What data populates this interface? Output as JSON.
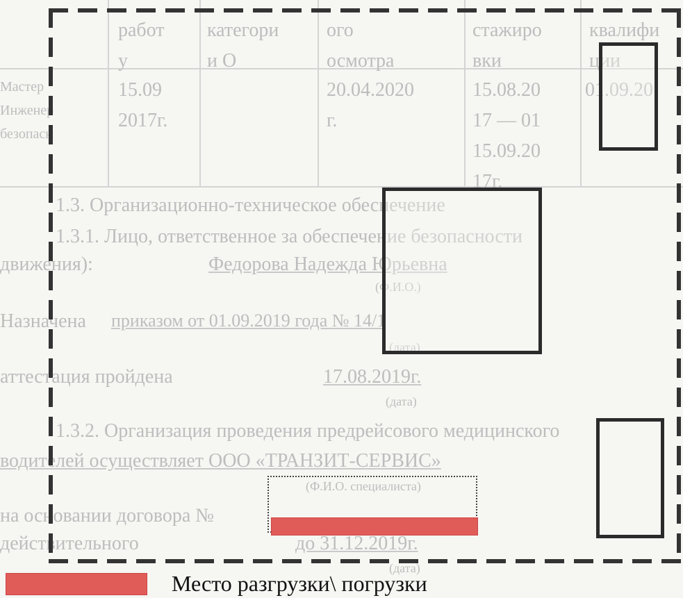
{
  "table": {
    "headers": [
      "работ\nу",
      "категори\nи О",
      "ого\nосмотра",
      "стажиро\nвки",
      "квалифи\nции"
    ],
    "row": {
      "left": [
        "Мастер",
        "Инженер",
        "безопасн"
      ],
      "col1": "15.09\n2017г.",
      "col3": "20.04.2020\nг.",
      "col4": "15.08.20\n17 — 01\n15.09.20\n17г.",
      "col5": "01.09.20"
    }
  },
  "document": {
    "section_title": "1.3. Организационно-техническое обеспечение",
    "line_1": "1.3.1. Лицо, ответственное за обеспечение безопасности",
    "line_2_prefix": "движения):",
    "line_2_name": "Федорова Надежда Юрьевна",
    "line_2_caption": "(Ф.И.О.)",
    "line_3_prefix": "Назначена",
    "line_3_value": "приказом от 01.09.2019 года № 14/1",
    "line_3_caption": "(дата)",
    "line_4_prefix": "аттестация пройдена",
    "line_4_value": "17.08.2019г.",
    "line_4_caption": "(дата)",
    "line_5": "1.3.2. Организация проведения предрейсового медицинского",
    "line_6_prefix": "водителей осуществляет ООО «ТРАНЗИТ-СЕРВИС»",
    "line_6_caption": "(Ф.И.О. специалиста)",
    "line_7_prefix": "на основании договора №",
    "line_8_prefix": "действительного",
    "line_8_value": "до 31.12.2019г.",
    "line_8_caption": "(дата)"
  },
  "legend": {
    "label": "Место разгрузки\\ погрузки",
    "color": "#e05c58"
  }
}
